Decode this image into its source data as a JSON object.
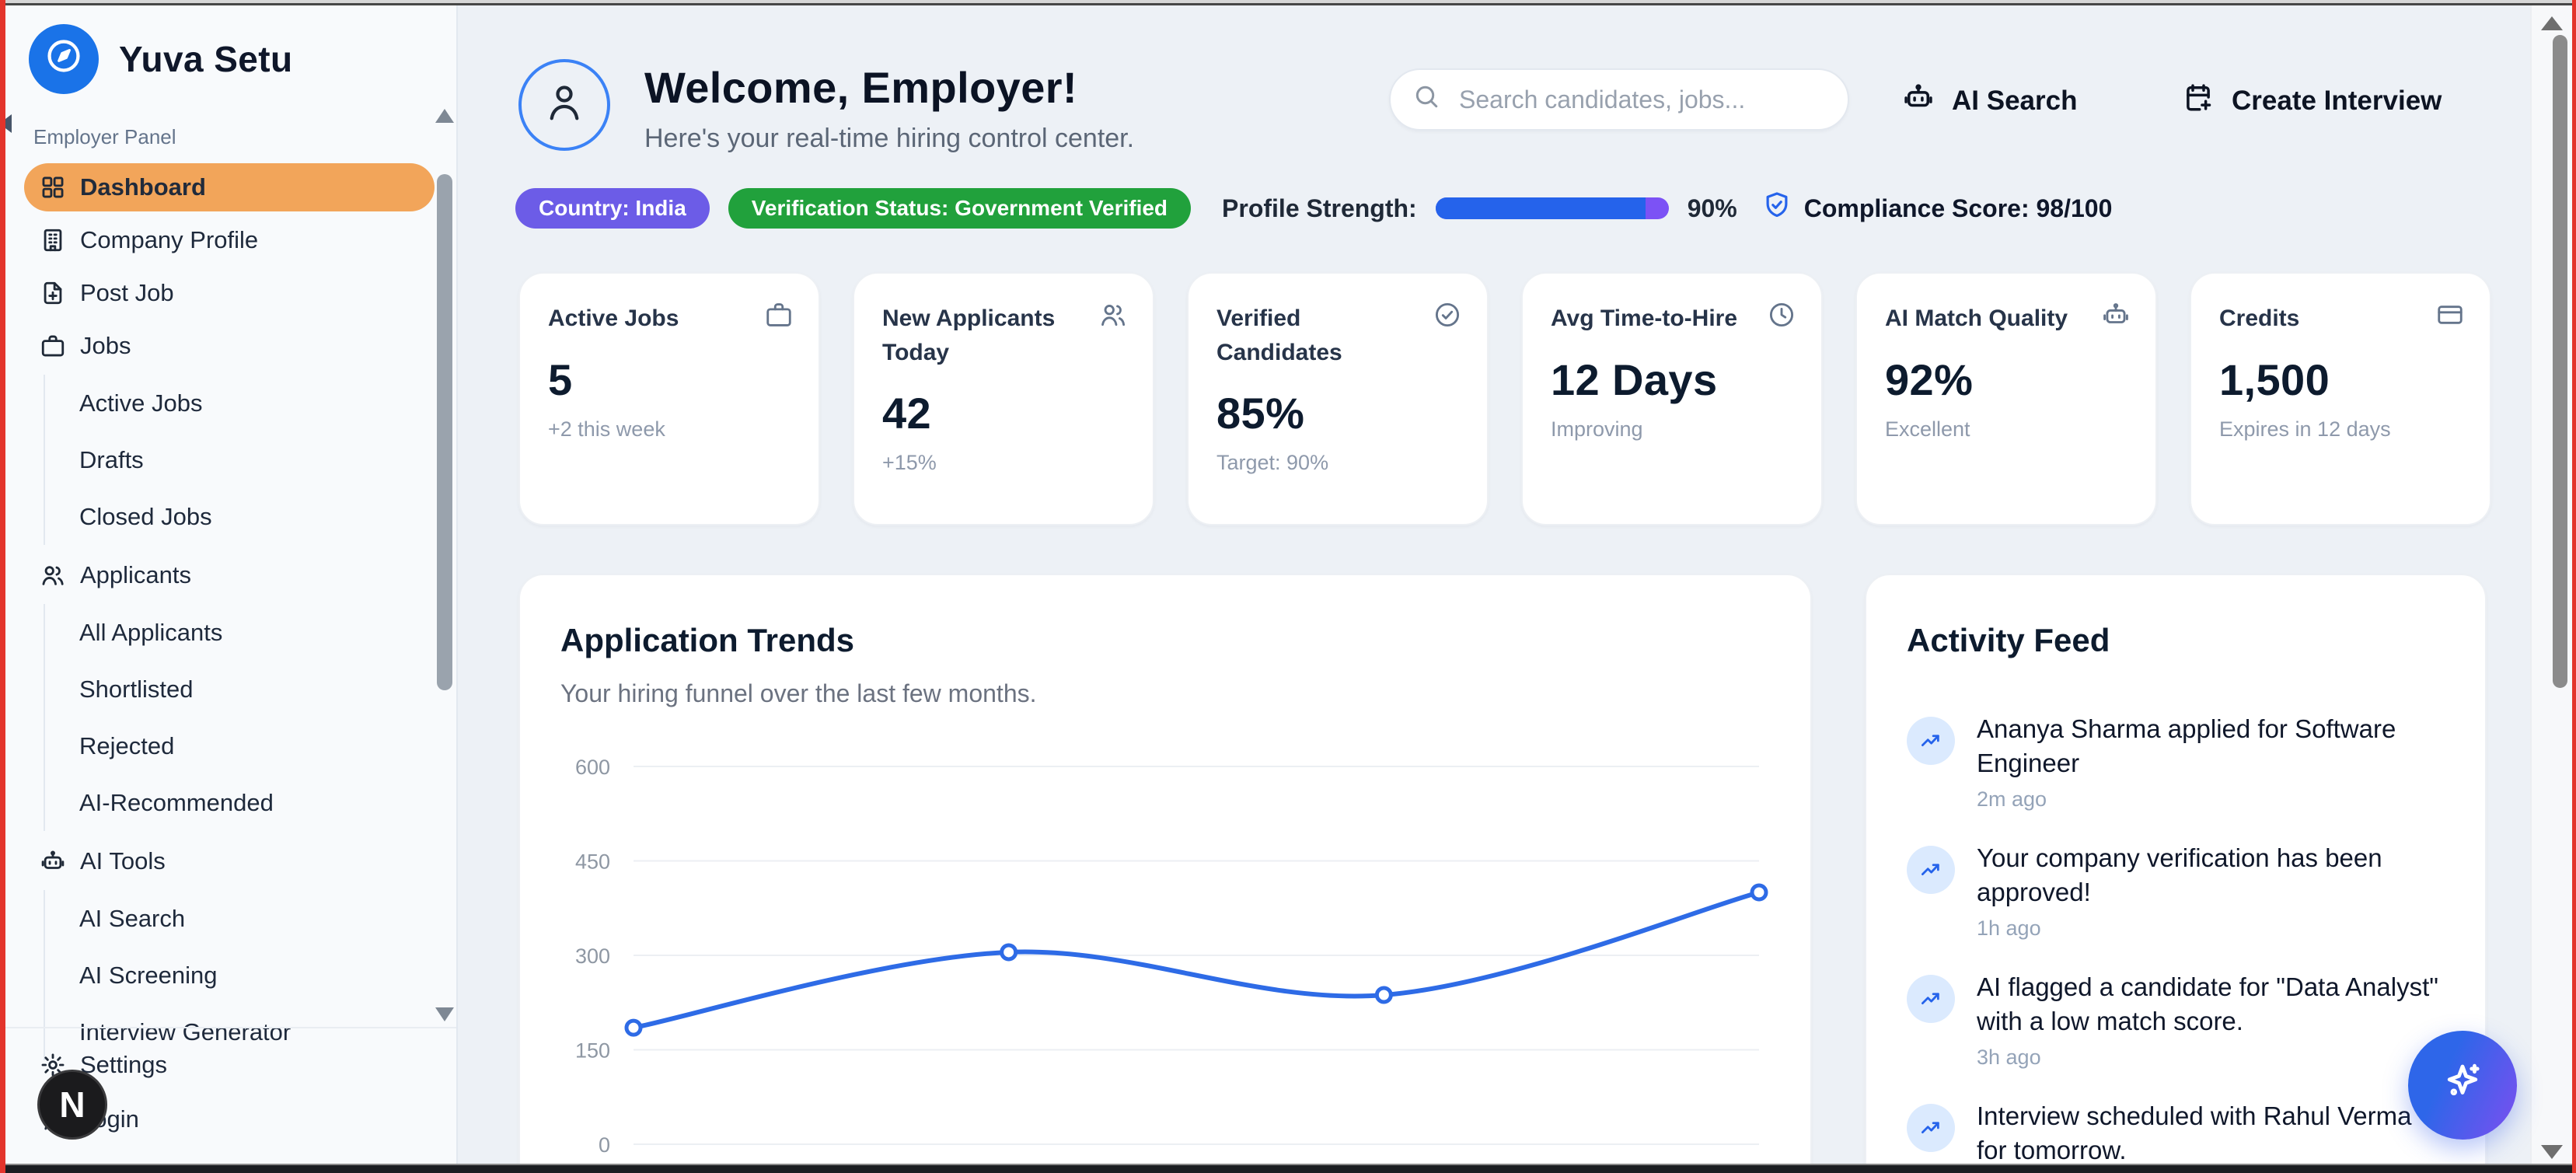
{
  "sidebar": {
    "logo_text": "Yuva Setu",
    "logo_icon": "compass",
    "section_label": "Employer Panel",
    "items": [
      {
        "label": "Dashboard",
        "icon": "layout-grid",
        "active": true
      },
      {
        "label": "Company Profile",
        "icon": "building"
      },
      {
        "label": "Post Job",
        "icon": "file-plus"
      },
      {
        "label": "Jobs",
        "icon": "briefcase",
        "children": [
          "Active Jobs",
          "Drafts",
          "Closed Jobs"
        ]
      },
      {
        "label": "Applicants",
        "icon": "users",
        "children": [
          "All Applicants",
          "Shortlisted",
          "Rejected",
          "AI-Recommended"
        ]
      },
      {
        "label": "AI Tools",
        "icon": "bot",
        "children": [
          "AI Search",
          "AI Screening",
          "Interview Generator"
        ]
      }
    ],
    "footer_items": [
      {
        "label": "Settings",
        "icon": "gear"
      },
      {
        "label": "Login",
        "icon": "user"
      }
    ],
    "dev_badge": "N"
  },
  "header": {
    "title": "Welcome, Employer!",
    "subtitle": "Here's your real-time hiring control center.",
    "search_placeholder": "Search candidates, jobs...",
    "ai_search_label": "AI Search",
    "create_interview_label": "Create Interview"
  },
  "status_bar": {
    "country_badge": "Country: India",
    "verification_badge": "Verification Status: Government Verified",
    "profile_strength_label": "Profile Strength:",
    "profile_strength_value": 90,
    "profile_strength_percent": "90%",
    "compliance_label": "Compliance Score: 98/100"
  },
  "stats": [
    {
      "title": "Active Jobs",
      "icon": "briefcase",
      "value": "5",
      "sub": "+2 this week"
    },
    {
      "title": "New Applicants Today",
      "icon": "users",
      "value": "42",
      "sub": "+15%"
    },
    {
      "title": "Verified Candidates",
      "icon": "check-circle",
      "value": "85%",
      "sub": "Target: 90%"
    },
    {
      "title": "Avg Time-to-Hire",
      "icon": "clock",
      "value": "12 Days",
      "sub": "Improving"
    },
    {
      "title": "AI Match Quality",
      "icon": "bot",
      "value": "92%",
      "sub": "Excellent"
    },
    {
      "title": "Credits",
      "icon": "credit-card",
      "value": "1,500",
      "sub": "Expires in 12 days"
    }
  ],
  "chart_data": {
    "type": "line",
    "title": "Application Trends",
    "subtitle": "Your hiring funnel over the last few months.",
    "x": [
      1,
      2,
      3,
      4
    ],
    "x_labels_visible": false,
    "series": [
      {
        "name": "Applications",
        "values": [
          185,
          305,
          237,
          400
        ]
      }
    ],
    "yticks": [
      0,
      150,
      300,
      450,
      600
    ],
    "ylim": [
      0,
      600
    ],
    "grid": "horizontal",
    "legend": "none",
    "line_color": "#2e6be6",
    "point_style": "open-circle"
  },
  "activity_feed": {
    "title": "Activity Feed",
    "icon": "trending-up",
    "items": [
      {
        "text": "Ananya Sharma applied for Software Engineer",
        "time": "2m ago"
      },
      {
        "text": "Your company verification has been approved!",
        "time": "1h ago"
      },
      {
        "text": "AI flagged a candidate for \"Data Analyst\" with a low match score.",
        "time": "3h ago"
      },
      {
        "text": "Interview scheduled with Rahul Verma for tomorrow.",
        "time": ""
      }
    ]
  },
  "fab": {
    "icon": "sparkles",
    "gradient": [
      "#2e66e9",
      "#7c4ff0"
    ]
  },
  "colors": {
    "accent_blue": "#2563eb",
    "brand_blue": "#1a73e8",
    "active_orange": "#f2a55a",
    "badge_purple": "#6c5ce7",
    "badge_green": "#21a13c",
    "progress_track_violet": "#7c52f5",
    "feed_icon_bg": "#dbeafe"
  }
}
